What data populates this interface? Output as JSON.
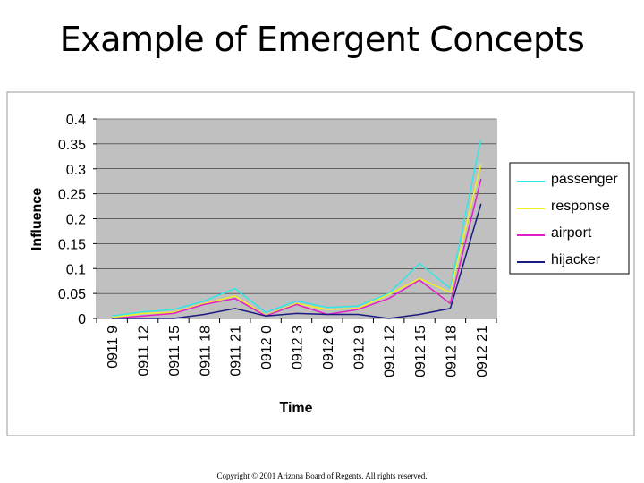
{
  "slide": {
    "title": "Example of Emergent Concepts",
    "footer": "Copyright © 2001 Arizona Board of Regents. All rights reserved."
  },
  "chart_data": {
    "type": "line",
    "title": "",
    "xlabel": "Time",
    "ylabel": "Influence",
    "ylim": [
      0,
      0.4
    ],
    "yticks": [
      0,
      0.05,
      0.1,
      0.15,
      0.2,
      0.25,
      0.3,
      0.35,
      0.4
    ],
    "ytick_labels": [
      "0",
      "0.05",
      "0.1",
      "0.15",
      "0.2",
      "0.25",
      "0.3",
      "0.35",
      "0.4"
    ],
    "categories": [
      "0911 9",
      "0911 12",
      "0911 15",
      "0911 18",
      "0911 21",
      "0912 0",
      "0912 3",
      "0912 6",
      "0912 9",
      "0912 12",
      "0912 15",
      "0912 18",
      "0912 21"
    ],
    "grid": true,
    "plot_background": "#c0c0c0",
    "legend_position": "right",
    "series": [
      {
        "name": "passenger",
        "color": "#33e6e6",
        "values": [
          0.005,
          0.013,
          0.018,
          0.035,
          0.06,
          0.012,
          0.035,
          0.022,
          0.025,
          0.05,
          0.11,
          0.06,
          0.36
        ]
      },
      {
        "name": "response",
        "color": "#f0f020",
        "values": [
          0.002,
          0.01,
          0.012,
          0.03,
          0.045,
          0.006,
          0.03,
          0.018,
          0.02,
          0.048,
          0.08,
          0.052,
          0.31
        ]
      },
      {
        "name": "airport",
        "color": "#e020c8",
        "values": [
          0.0,
          0.005,
          0.01,
          0.028,
          0.04,
          0.005,
          0.028,
          0.008,
          0.018,
          0.04,
          0.077,
          0.03,
          0.28
        ]
      },
      {
        "name": "hijacker",
        "color": "#1a1a80",
        "values": [
          0.0,
          0.0,
          0.0,
          0.008,
          0.02,
          0.005,
          0.01,
          0.008,
          0.008,
          0.0,
          0.008,
          0.02,
          0.23
        ]
      }
    ]
  }
}
